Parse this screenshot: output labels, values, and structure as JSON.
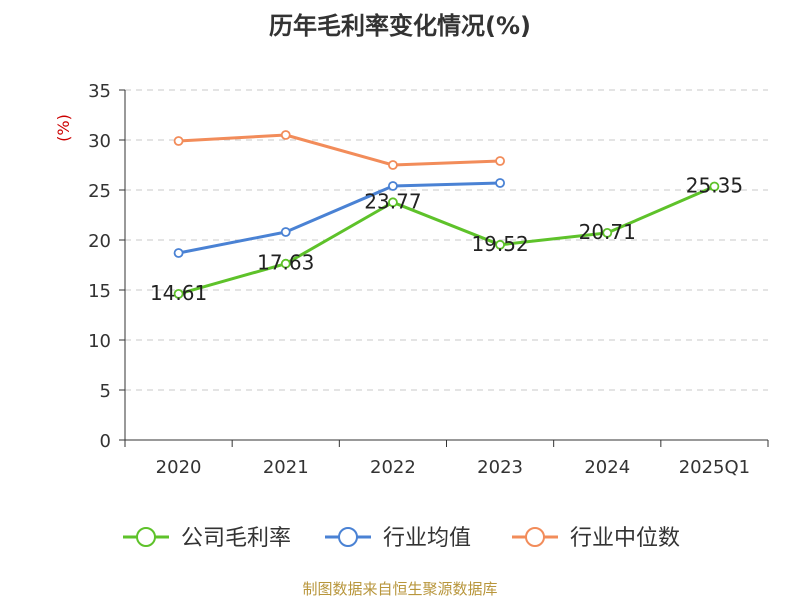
{
  "chart_data": {
    "type": "line",
    "title": "历年毛利率变化情况(%)",
    "ylabel": "(%)",
    "xlabel": "",
    "categories": [
      "2020",
      "2021",
      "2022",
      "2023",
      "2024",
      "2025Q1"
    ],
    "ylim": [
      0,
      35
    ],
    "yticks": [
      0,
      5,
      10,
      15,
      20,
      25,
      30,
      35
    ],
    "grid": true,
    "legend_position": "bottom",
    "series": [
      {
        "name": "公司毛利率",
        "color": "#5ec22a",
        "labels": true,
        "values": [
          14.61,
          17.63,
          23.77,
          19.52,
          20.71,
          25.35
        ]
      },
      {
        "name": "行业均值",
        "color": "#4a82d4",
        "labels": false,
        "values": [
          18.7,
          20.8,
          25.4,
          25.7,
          null,
          null
        ]
      },
      {
        "name": "行业中位数",
        "color": "#f28c5a",
        "labels": false,
        "values": [
          29.9,
          30.5,
          27.5,
          27.9,
          null,
          null
        ]
      }
    ]
  },
  "footer": {
    "source": "制图数据来自恒生聚源数据库"
  }
}
